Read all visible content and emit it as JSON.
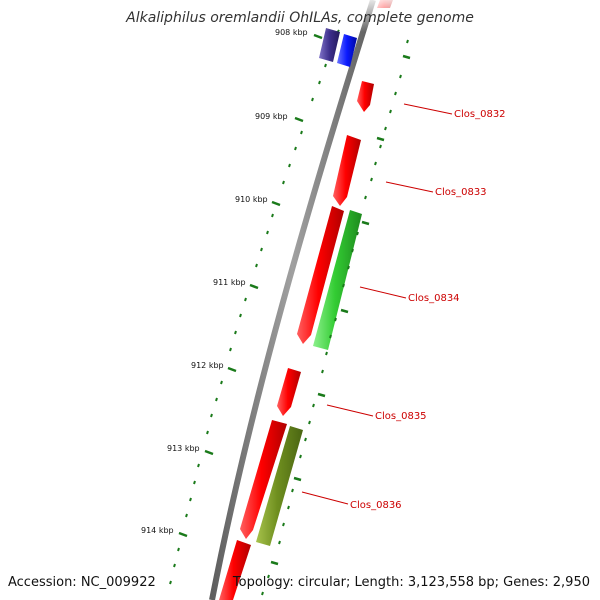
{
  "title": "Alkaliphilus oremlandii OhILAs, complete genome",
  "footer": {
    "accession": "Accession: NC_009922",
    "summary": "Topology: circular; Length: 3,123,558 bp; Genes: 2,950"
  },
  "colors": {
    "backbone": "#8c8c8c",
    "ticks": "#1a7a1a",
    "forward_gene": "#ff1010",
    "reverse_gene_green": "#33cc33",
    "reverse_gene_olive": "#6f8f1f",
    "blue_gene": "#0a1aff",
    "purple_gene": "#3d2f8c",
    "label": "#cc0000"
  },
  "ruler": {
    "unit": "kbp",
    "labels": [
      "908 kbp",
      "909 kbp",
      "910 kbp",
      "911 kbp",
      "912 kbp",
      "913 kbp",
      "914 kbp"
    ]
  },
  "genes": [
    {
      "label": "Clos_0832"
    },
    {
      "label": "Clos_0833"
    },
    {
      "label": "Clos_0834"
    },
    {
      "label": "Clos_0835"
    },
    {
      "label": "Clos_0836"
    }
  ]
}
